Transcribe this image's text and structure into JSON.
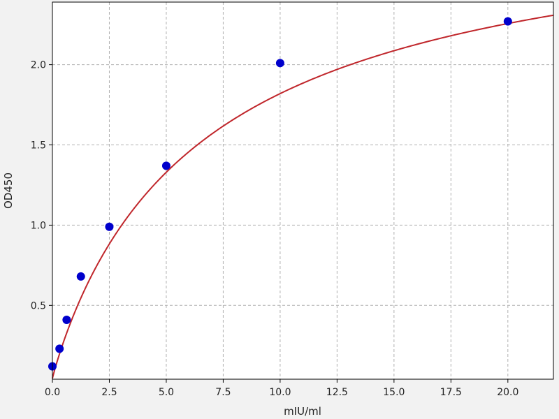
{
  "chart_data": {
    "type": "scatter",
    "title": "",
    "xlabel": "mIU/ml",
    "ylabel": "OD450",
    "xlim": [
      0,
      22
    ],
    "ylim": [
      0.04,
      2.39
    ],
    "xticks": [
      0.0,
      2.5,
      5.0,
      7.5,
      10.0,
      12.5,
      15.0,
      17.5,
      20.0
    ],
    "xtick_labels": [
      "0.0",
      "2.5",
      "5.0",
      "7.5",
      "10.0",
      "12.5",
      "15.0",
      "17.5",
      "20.0"
    ],
    "yticks": [
      0.5,
      1.0,
      1.5,
      2.0
    ],
    "ytick_labels": [
      "0.5",
      "1.0",
      "1.5",
      "2.0"
    ],
    "grid": true,
    "series": [
      {
        "type": "scatter",
        "color": "#0000cc",
        "x": [
          0,
          0.3125,
          0.625,
          1.25,
          2.5,
          5,
          10,
          20
        ],
        "y": [
          0.12,
          0.23,
          0.41,
          0.68,
          0.99,
          1.37,
          2.01,
          2.27
        ]
      },
      {
        "type": "line",
        "color": "#c0262b",
        "fit": {
          "model": "4PL",
          "a": 0.045,
          "b": 0.95,
          "c": 6.8,
          "d": 3.05
        }
      }
    ]
  }
}
